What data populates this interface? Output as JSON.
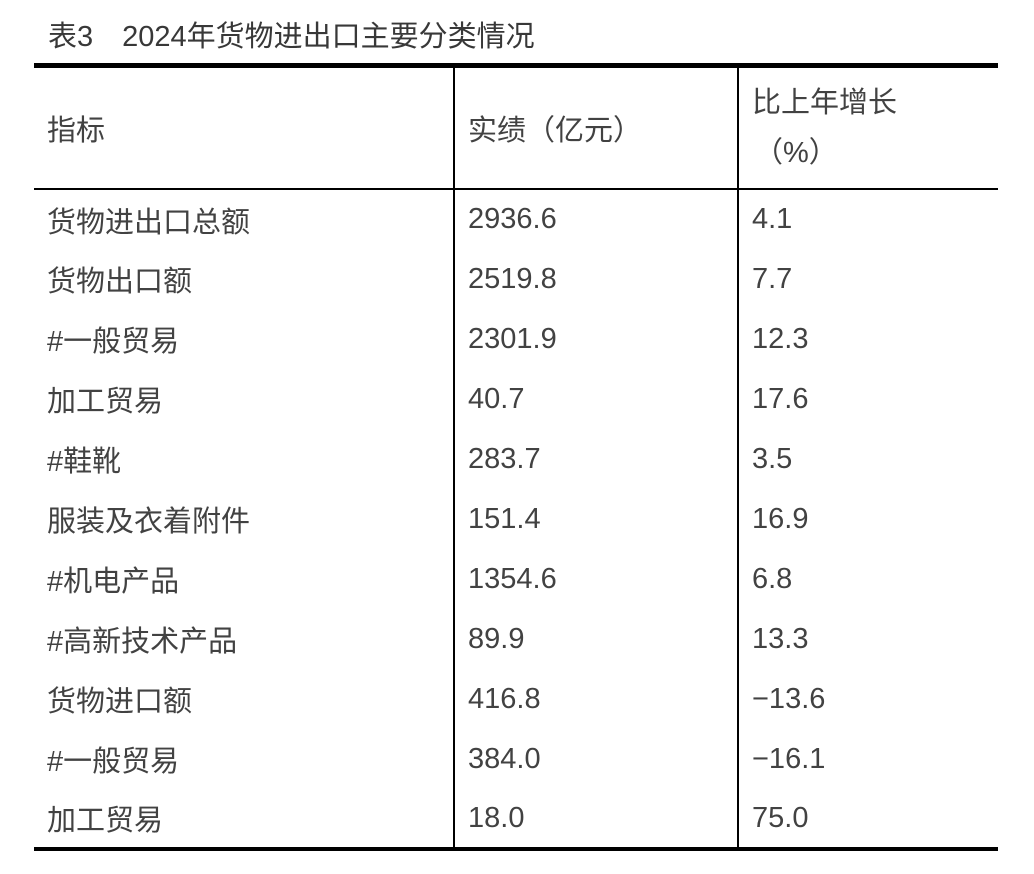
{
  "title": "表3　2024年货物进出口主要分类情况",
  "table": {
    "headers": {
      "indicator": "指标",
      "value": "实绩（亿元）",
      "growth_line1": "比上年增长",
      "growth_line2": "（%）"
    },
    "rows": [
      {
        "indicator": "货物进出口总额",
        "value": "2936.6",
        "growth": "4.1"
      },
      {
        "indicator": "货物出口额",
        "value": "2519.8",
        "growth": "7.7"
      },
      {
        "indicator": "#一般贸易",
        "value": "2301.9",
        "growth": "12.3"
      },
      {
        "indicator": "加工贸易",
        "value": "40.7",
        "growth": "17.6"
      },
      {
        "indicator": "#鞋靴",
        "value": "283.7",
        "growth": "3.5"
      },
      {
        "indicator": "服装及衣着附件",
        "value": "151.4",
        "growth": "16.9"
      },
      {
        "indicator": "#机电产品",
        "value": "1354.6",
        "growth": "6.8"
      },
      {
        "indicator": "#高新技术产品",
        "value": "89.9",
        "growth": "13.3"
      },
      {
        "indicator": "货物进口额",
        "value": "416.8",
        "growth": "−13.6"
      },
      {
        "indicator": "#一般贸易",
        "value": "384.0",
        "growth": "−16.1"
      },
      {
        "indicator": "加工贸易",
        "value": "18.0",
        "growth": "75.0"
      }
    ],
    "colors": {
      "text": "#424242",
      "title_text": "#383838",
      "border": "#000000",
      "background": "#ffffff"
    }
  }
}
